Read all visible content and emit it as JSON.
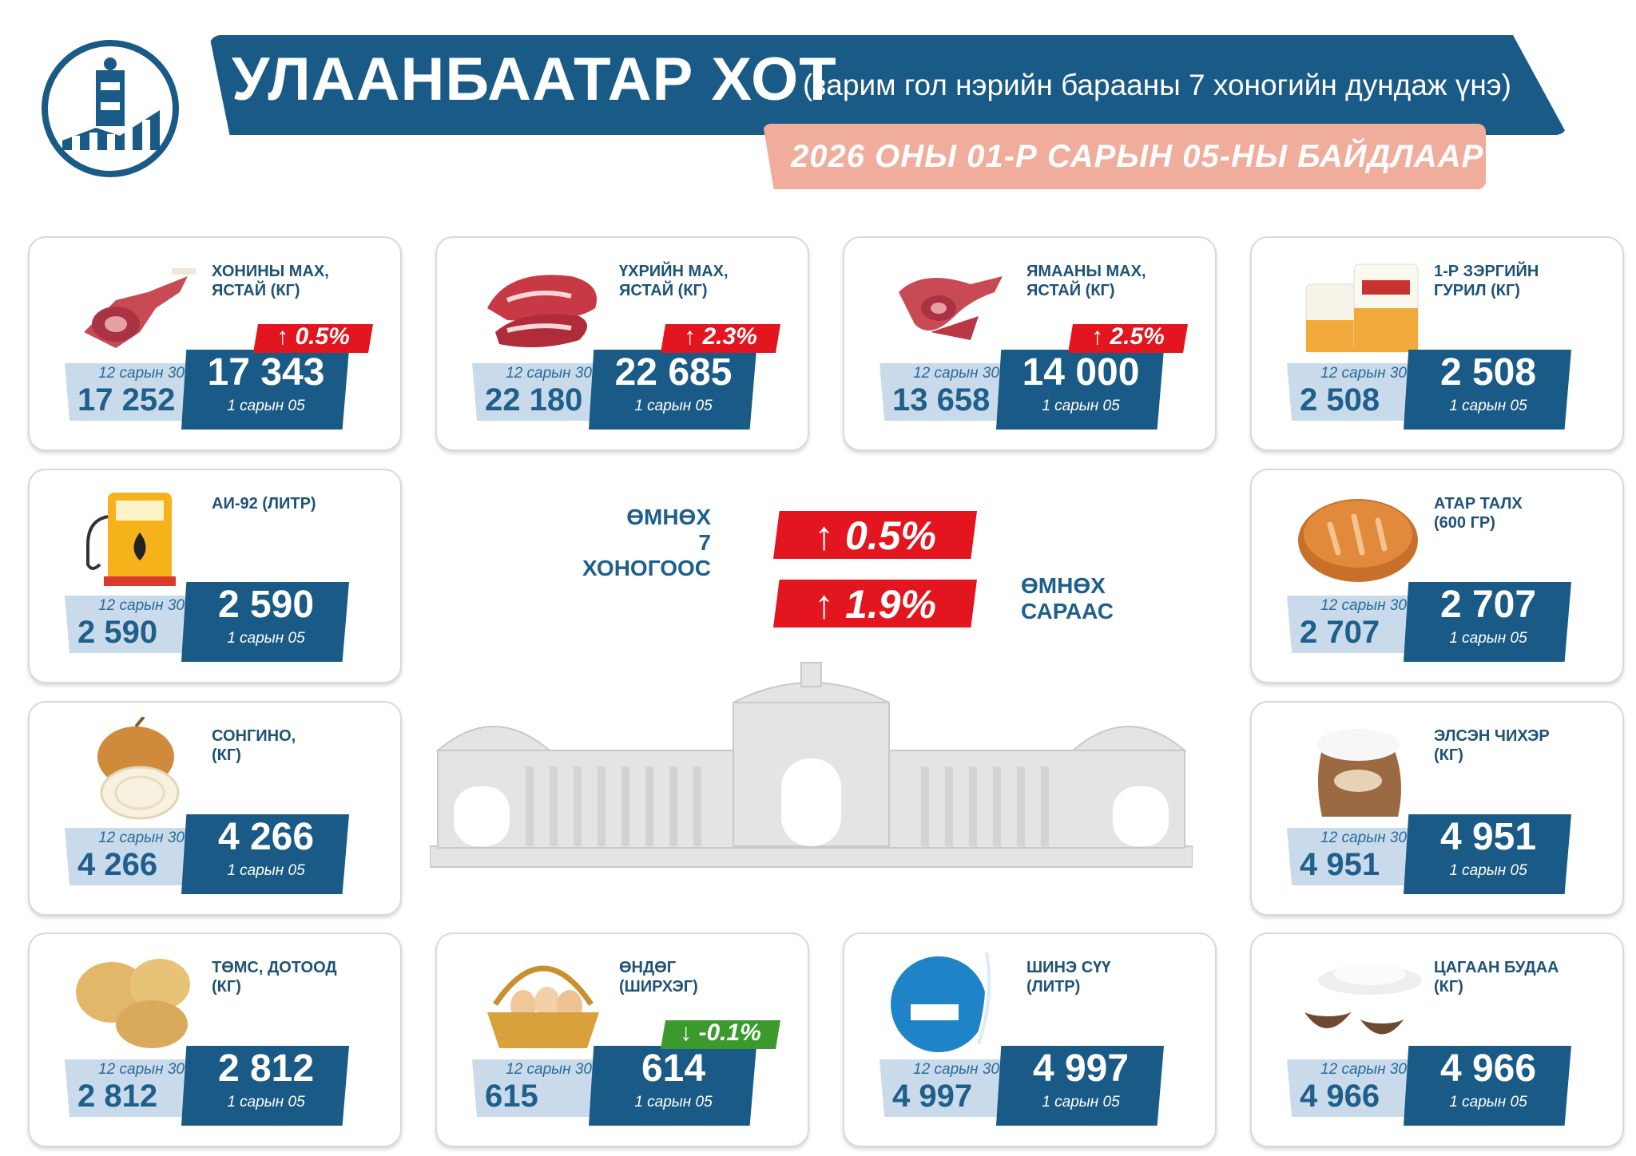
{
  "header": {
    "title": "УЛААНБААТАР ХОТ",
    "subtitle": "(зарим гол нэрийн барааны 7 хоногийн дундаж үнэ)",
    "date": "2026 ОНЫ 01-Р САРЫН 05-НЫ БАЙДЛААР"
  },
  "summary": {
    "week_label": "ӨМНӨХ\n7 ХОНОГООС",
    "week_change": "↑ 0.5%",
    "month_label": "ӨМНӨХ\nСАРААС",
    "month_change": "↑ 1.9%"
  },
  "colors": {
    "primary": "#1a5a86",
    "up": "#e3151e",
    "down": "#3a9b2c",
    "date_bar": "#f0ad9c"
  },
  "items": [
    {
      "icon": "mutton-meat-icon",
      "name": "ХОНИНЫ МАХ,\nЯСТАЙ (КГ)",
      "prev_label": "12 сарын 30",
      "prev": "17 252",
      "cur": "17 343",
      "cur_label": "1 сарын 05",
      "change": "↑ 0.5%",
      "dir": "up"
    },
    {
      "icon": "beef-meat-icon",
      "name": "ҮХРИЙН МАХ,\nЯСТАЙ (КГ)",
      "prev_label": "12 сарын 30",
      "prev": "22 180",
      "cur": "22 685",
      "cur_label": "1 сарын 05",
      "change": "↑ 2.3%",
      "dir": "up"
    },
    {
      "icon": "goat-meat-icon",
      "name": "ЯМААНЫ МАХ,\nЯСТАЙ (КГ)",
      "prev_label": "12 сарын 30",
      "prev": "13 658",
      "cur": "14 000",
      "cur_label": "1 сарын 05",
      "change": "↑ 2.5%",
      "dir": "up"
    },
    {
      "icon": "flour-bag-icon",
      "name": "1-Р ЗЭРГИЙН\nГУРИЛ (КГ)",
      "prev_label": "12 сарын 30",
      "prev": "2 508",
      "cur": "2 508",
      "cur_label": "1 сарын 05",
      "change": "",
      "dir": ""
    },
    {
      "icon": "fuel-pump-icon",
      "name": "АИ-92 (ЛИТР)",
      "prev_label": "12 сарын 30",
      "prev": "2 590",
      "cur": "2 590",
      "cur_label": "1 сарын 05",
      "change": "",
      "dir": ""
    },
    {
      "icon": "bread-icon",
      "name": "АТАР ТАЛХ\n(600 ГР)",
      "prev_label": "12 сарын 30",
      "prev": "2 707",
      "cur": "2 707",
      "cur_label": "1 сарын 05",
      "change": "",
      "dir": ""
    },
    {
      "icon": "onion-icon",
      "name": "СОНГИНО,\n(КГ)",
      "prev_label": "12 сарын 30",
      "prev": "4 266",
      "cur": "4 266",
      "cur_label": "1 сарын 05",
      "change": "",
      "dir": ""
    },
    {
      "icon": "sugar-sack-icon",
      "name": "ЭЛСЭН ЧИХЭР\n(КГ)",
      "prev_label": "12 сарын 30",
      "prev": "4 951",
      "cur": "4 951",
      "cur_label": "1 сарын 05",
      "change": "",
      "dir": ""
    },
    {
      "icon": "potato-icon",
      "name": "ТӨМС, ДОТООД\n(КГ)",
      "prev_label": "12 сарын 30",
      "prev": "2 812",
      "cur": "2 812",
      "cur_label": "1 сарын 05",
      "change": "",
      "dir": ""
    },
    {
      "icon": "egg-basket-icon",
      "name": "ӨНДӨГ\n(ШИРХЭГ)",
      "prev_label": "12 сарын 30",
      "prev": "615",
      "cur": "614",
      "cur_label": "1 сарын 05",
      "change": "↓ -0.1%",
      "dir": "down"
    },
    {
      "icon": "milk-icon",
      "name": "ШИНЭ СҮҮ\n(ЛИТР)",
      "prev_label": "12 сарын 30",
      "prev": "4 997",
      "cur": "4 997",
      "cur_label": "1 сарын 05",
      "change": "",
      "dir": ""
    },
    {
      "icon": "rice-bowl-icon",
      "name": "ЦАГААН БУДАА\n(КГ)",
      "prev_label": "12 сарын 30",
      "prev": "4 966",
      "cur": "4 966",
      "cur_label": "1 сарын 05",
      "change": "",
      "dir": ""
    }
  ]
}
